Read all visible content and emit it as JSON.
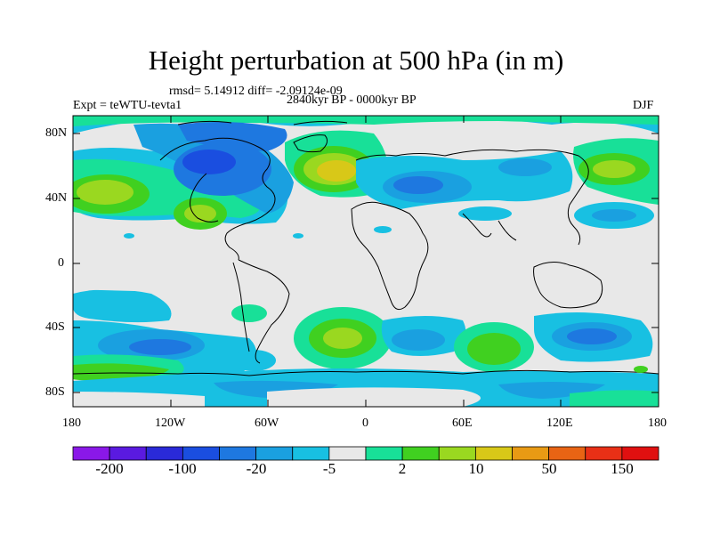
{
  "title": "Height perturbation at 500 hPa (in m)",
  "stats": "rmsd= 5.14912 diff= -2.09124e-09",
  "experiment": "Expt = teWTU-tevta1",
  "period": "2840kyr BP - 0000kyr BP",
  "season": "DJF",
  "axes": {
    "lat_labels": [
      "80N",
      "40N",
      "0",
      "40S",
      "80S"
    ],
    "lon_labels": [
      "180",
      "120W",
      "60W",
      "0",
      "60E",
      "120E",
      "180"
    ]
  },
  "colorbar": {
    "colors": [
      "#8a18e8",
      "#5a1ae0",
      "#2a2ad8",
      "#1a4ee0",
      "#1e78e0",
      "#1aa0e0",
      "#18c0e2",
      "#e8e8e8",
      "#18e098",
      "#40d020",
      "#9ad820",
      "#d8c818",
      "#e89a14",
      "#e86414",
      "#e83016",
      "#e01010"
    ],
    "labels": [
      "-200",
      "-100",
      "-20",
      "-5",
      "2",
      "10",
      "50",
      "150"
    ]
  }
}
